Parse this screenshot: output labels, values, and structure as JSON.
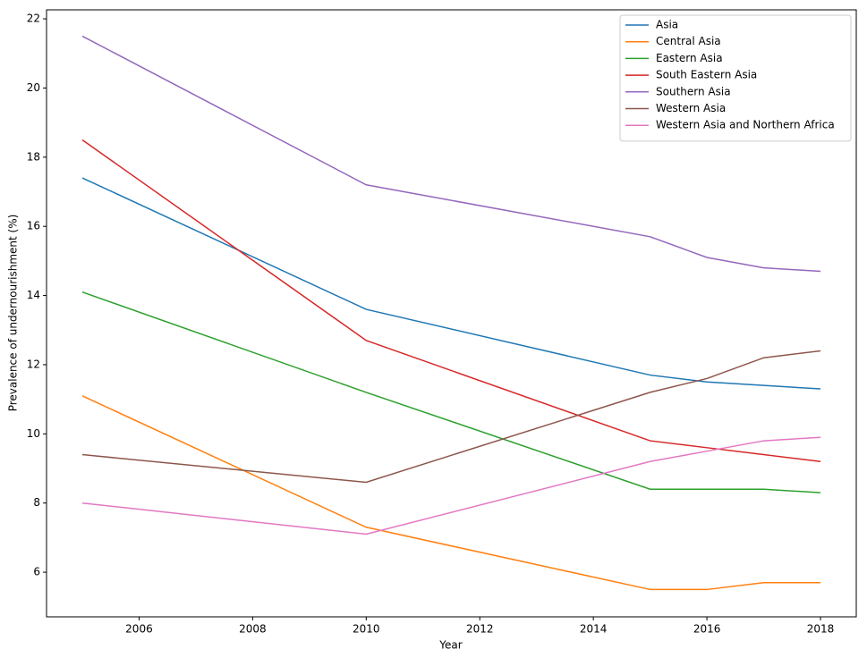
{
  "chart_data": {
    "type": "line",
    "x_label": "Year",
    "y_label": "Prevalence of undernourishment (%)",
    "x": [
      2005,
      2010,
      2015,
      2016,
      2017,
      2018
    ],
    "series": [
      {
        "name": "Asia",
        "color": "#1f77b4",
        "values": [
          17.4,
          13.6,
          11.7,
          11.5,
          11.4,
          11.3
        ]
      },
      {
        "name": "Central Asia",
        "color": "#ff7f0e",
        "values": [
          11.1,
          7.3,
          5.5,
          5.5,
          5.7,
          5.7
        ]
      },
      {
        "name": "Eastern Asia",
        "color": "#2ca02c",
        "values": [
          14.1,
          11.2,
          8.4,
          8.4,
          8.4,
          8.3
        ]
      },
      {
        "name": "South Eastern Asia",
        "color": "#d62728",
        "values": [
          18.5,
          12.7,
          9.8,
          9.6,
          9.4,
          9.2
        ]
      },
      {
        "name": "Southern Asia",
        "color": "#9467bd",
        "values": [
          21.5,
          17.2,
          15.7,
          15.1,
          14.8,
          14.7
        ]
      },
      {
        "name": "Western Asia",
        "color": "#8c564b",
        "values": [
          9.4,
          8.6,
          11.2,
          11.6,
          12.2,
          12.4
        ]
      },
      {
        "name": "Western Asia and Northern Africa",
        "color": "#e377c2",
        "values": [
          8.0,
          7.1,
          9.2,
          9.5,
          9.8,
          9.9
        ]
      }
    ],
    "xlim": [
      2004.37,
      2018.63
    ],
    "xticks": [
      2006,
      2008,
      2010,
      2012,
      2014,
      2016,
      2018
    ],
    "ylim": [
      4.71,
      22.26
    ],
    "yticks": [
      6,
      8,
      10,
      12,
      14,
      16,
      18,
      20,
      22
    ],
    "legend": "upper right",
    "grid": false
  }
}
